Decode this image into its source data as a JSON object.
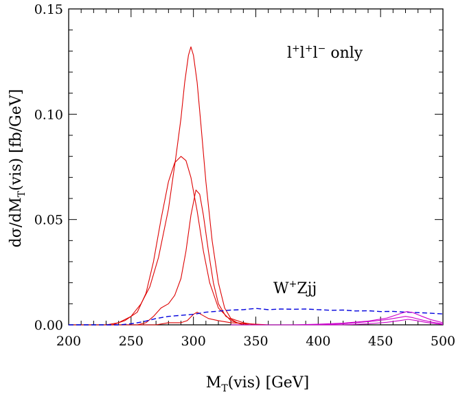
{
  "chart_data": {
    "type": "line",
    "xlabel": {
      "main": "M",
      "sub": "T",
      "rest": "(vis)  [GeV]"
    },
    "ylabel": {
      "pre": "dσ/dM",
      "sub": "T",
      "rest": "(vis)  [fb/GeV]"
    },
    "xlim": [
      200,
      500
    ],
    "ylim": [
      0,
      0.15
    ],
    "x_ticks": [
      "200",
      "250",
      "300",
      "350",
      "400",
      "450",
      "500"
    ],
    "y_ticks": [
      "0.00",
      "0.05",
      "0.10",
      "0.15"
    ],
    "grid": false,
    "annotations": {
      "top_right": {
        "a": "l",
        "a_sup": "+",
        "b": "l",
        "b_sup": "+",
        "c": "l",
        "c_sup": "−",
        "rest": "  only"
      },
      "background": {
        "a": "W",
        "a_sup": "+",
        "rest": "Zjj"
      }
    },
    "colors": {
      "signal": "#dd0000",
      "background": "#0000dd",
      "secondary": "#cc00cc"
    },
    "series": [
      {
        "group": "signal",
        "style": "solid",
        "points": [
          [
            200,
            0
          ],
          [
            230,
            0
          ],
          [
            240,
            0.001
          ],
          [
            250,
            0.004
          ],
          [
            258,
            0.01
          ],
          [
            265,
            0.018
          ],
          [
            272,
            0.032
          ],
          [
            280,
            0.055
          ],
          [
            286,
            0.08
          ],
          [
            290,
            0.098
          ],
          [
            293,
            0.115
          ],
          [
            296,
            0.128
          ],
          [
            298,
            0.132
          ],
          [
            300,
            0.128
          ],
          [
            303,
            0.115
          ],
          [
            306,
            0.095
          ],
          [
            310,
            0.068
          ],
          [
            315,
            0.04
          ],
          [
            320,
            0.02
          ],
          [
            325,
            0.008
          ],
          [
            330,
            0.003
          ],
          [
            340,
            0.001
          ],
          [
            350,
            0
          ]
        ]
      },
      {
        "group": "signal",
        "style": "solid",
        "points": [
          [
            200,
            0
          ],
          [
            235,
            0
          ],
          [
            245,
            0.002
          ],
          [
            255,
            0.006
          ],
          [
            262,
            0.015
          ],
          [
            268,
            0.03
          ],
          [
            274,
            0.05
          ],
          [
            280,
            0.068
          ],
          [
            285,
            0.077
          ],
          [
            290,
            0.08
          ],
          [
            294,
            0.078
          ],
          [
            298,
            0.07
          ],
          [
            303,
            0.054
          ],
          [
            308,
            0.035
          ],
          [
            313,
            0.02
          ],
          [
            320,
            0.008
          ],
          [
            330,
            0.002
          ],
          [
            340,
            0
          ]
        ]
      },
      {
        "group": "signal",
        "style": "solid",
        "points": [
          [
            200,
            0
          ],
          [
            255,
            0
          ],
          [
            262,
            0.001
          ],
          [
            268,
            0.004
          ],
          [
            274,
            0.008
          ],
          [
            280,
            0.01
          ],
          [
            285,
            0.014
          ],
          [
            290,
            0.022
          ],
          [
            294,
            0.035
          ],
          [
            298,
            0.052
          ],
          [
            302,
            0.064
          ],
          [
            305,
            0.062
          ],
          [
            308,
            0.052
          ],
          [
            312,
            0.035
          ],
          [
            316,
            0.02
          ],
          [
            320,
            0.01
          ],
          [
            326,
            0.004
          ],
          [
            335,
            0.001
          ],
          [
            345,
            0
          ]
        ]
      },
      {
        "group": "signal",
        "style": "solid",
        "points": [
          [
            200,
            0
          ],
          [
            270,
            0
          ],
          [
            280,
            0.001
          ],
          [
            290,
            0.001
          ],
          [
            295,
            0.002
          ],
          [
            300,
            0.005
          ],
          [
            303,
            0.006
          ],
          [
            306,
            0.005
          ],
          [
            312,
            0.003
          ],
          [
            320,
            0.002
          ],
          [
            330,
            0.001
          ],
          [
            345,
            0.0005
          ],
          [
            360,
            0
          ]
        ]
      },
      {
        "group": "background",
        "style": "dashed",
        "points": [
          [
            200,
            0
          ],
          [
            240,
            0
          ],
          [
            250,
            0.0005
          ],
          [
            260,
            0.0015
          ],
          [
            270,
            0.003
          ],
          [
            280,
            0.004
          ],
          [
            290,
            0.0045
          ],
          [
            300,
            0.005
          ],
          [
            310,
            0.006
          ],
          [
            320,
            0.0065
          ],
          [
            330,
            0.007
          ],
          [
            340,
            0.0072
          ],
          [
            350,
            0.0078
          ],
          [
            360,
            0.0072
          ],
          [
            370,
            0.0075
          ],
          [
            380,
            0.0074
          ],
          [
            390,
            0.0075
          ],
          [
            400,
            0.0072
          ],
          [
            410,
            0.0069
          ],
          [
            420,
            0.007
          ],
          [
            430,
            0.0066
          ],
          [
            440,
            0.0067
          ],
          [
            450,
            0.0063
          ],
          [
            460,
            0.0064
          ],
          [
            470,
            0.006
          ],
          [
            480,
            0.0058
          ],
          [
            490,
            0.0055
          ],
          [
            500,
            0.0052
          ]
        ]
      },
      {
        "group": "secondary",
        "style": "solid",
        "points": [
          [
            330,
            0
          ],
          [
            380,
            0
          ],
          [
            400,
            0.0003
          ],
          [
            420,
            0.0008
          ],
          [
            440,
            0.0018
          ],
          [
            455,
            0.0032
          ],
          [
            465,
            0.0052
          ],
          [
            471,
            0.0063
          ],
          [
            476,
            0.0058
          ],
          [
            482,
            0.0043
          ],
          [
            490,
            0.0025
          ],
          [
            500,
            0.001
          ]
        ]
      },
      {
        "group": "secondary",
        "style": "solid",
        "points": [
          [
            330,
            0
          ],
          [
            400,
            0
          ],
          [
            420,
            0.0005
          ],
          [
            440,
            0.0015
          ],
          [
            455,
            0.0025
          ],
          [
            465,
            0.0035
          ],
          [
            470,
            0.004
          ],
          [
            476,
            0.0034
          ],
          [
            484,
            0.0022
          ],
          [
            492,
            0.0012
          ],
          [
            500,
            0.0005
          ]
        ]
      },
      {
        "group": "secondary",
        "style": "solid",
        "points": [
          [
            330,
            0
          ],
          [
            420,
            0
          ],
          [
            440,
            0.0005
          ],
          [
            455,
            0.0012
          ],
          [
            465,
            0.002
          ],
          [
            472,
            0.0026
          ],
          [
            478,
            0.0021
          ],
          [
            486,
            0.0012
          ],
          [
            495,
            0.0005
          ],
          [
            500,
            0.0002
          ]
        ]
      }
    ]
  }
}
